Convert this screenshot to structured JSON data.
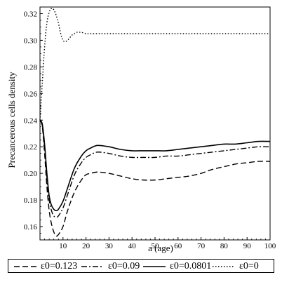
{
  "chart_data": {
    "type": "line",
    "title": "",
    "xlabel": "a (age)",
    "ylabel": "Precancerous cells density",
    "xlim": [
      0,
      100
    ],
    "ylim": [
      0.15,
      0.325
    ],
    "xticks": [
      "10",
      "20",
      "30",
      "40",
      "50",
      "60",
      "70",
      "80",
      "90",
      "100"
    ],
    "yticks": [
      "0.16",
      "0.18",
      "0.20",
      "0.22",
      "0.24",
      "0.26",
      "0.28",
      "0.30",
      "0.32"
    ],
    "grid": false,
    "legend_position": "bottom",
    "series": [
      {
        "name": "ε0=0.123",
        "dash": "dashed",
        "x": [
          0,
          1,
          2,
          3,
          4,
          5,
          6,
          7,
          8,
          10,
          12,
          15,
          18,
          20,
          22,
          25,
          30,
          35,
          40,
          45,
          50,
          55,
          60,
          65,
          70,
          75,
          80,
          85,
          90,
          95,
          100
        ],
        "y": [
          0.24,
          0.235,
          0.215,
          0.19,
          0.172,
          0.162,
          0.156,
          0.153,
          0.154,
          0.16,
          0.172,
          0.186,
          0.195,
          0.199,
          0.2,
          0.201,
          0.2,
          0.198,
          0.196,
          0.195,
          0.195,
          0.196,
          0.197,
          0.198,
          0.2,
          0.203,
          0.205,
          0.207,
          0.208,
          0.209,
          0.209
        ]
      },
      {
        "name": "ε0=0.09",
        "dash": "dashdot",
        "x": [
          0,
          1,
          2,
          3,
          4,
          5,
          6,
          7,
          8,
          10,
          12,
          15,
          18,
          20,
          22,
          25,
          30,
          35,
          40,
          45,
          50,
          55,
          60,
          65,
          70,
          75,
          80,
          85,
          90,
          95,
          100
        ],
        "y": [
          0.24,
          0.236,
          0.22,
          0.197,
          0.18,
          0.172,
          0.168,
          0.167,
          0.168,
          0.174,
          0.184,
          0.199,
          0.208,
          0.212,
          0.214,
          0.216,
          0.215,
          0.213,
          0.212,
          0.212,
          0.212,
          0.213,
          0.213,
          0.214,
          0.215,
          0.216,
          0.217,
          0.218,
          0.219,
          0.22,
          0.22
        ]
      },
      {
        "name": "ε0=0.0801",
        "dash": "solid",
        "x": [
          0,
          1,
          2,
          3,
          4,
          5,
          6,
          7,
          8,
          10,
          12,
          15,
          18,
          20,
          22,
          25,
          30,
          35,
          40,
          45,
          50,
          55,
          60,
          65,
          70,
          75,
          80,
          85,
          90,
          95,
          100
        ],
        "y": [
          0.24,
          0.237,
          0.222,
          0.2,
          0.183,
          0.176,
          0.173,
          0.172,
          0.173,
          0.179,
          0.189,
          0.204,
          0.213,
          0.217,
          0.219,
          0.221,
          0.22,
          0.218,
          0.217,
          0.217,
          0.217,
          0.217,
          0.218,
          0.219,
          0.22,
          0.221,
          0.222,
          0.222,
          0.223,
          0.224,
          0.224
        ]
      },
      {
        "name": "ε0=0",
        "dash": "dotted",
        "x": [
          0,
          1,
          2,
          3,
          4,
          5,
          6,
          7,
          8,
          9,
          10,
          11,
          12,
          13,
          14,
          15,
          16,
          17,
          18,
          20,
          22,
          25,
          30,
          40,
          50,
          60,
          70,
          80,
          90,
          100
        ],
        "y": [
          0.24,
          0.268,
          0.295,
          0.313,
          0.321,
          0.324,
          0.323,
          0.319,
          0.313,
          0.305,
          0.3,
          0.299,
          0.3,
          0.302,
          0.304,
          0.305,
          0.306,
          0.306,
          0.306,
          0.305,
          0.305,
          0.305,
          0.305,
          0.305,
          0.305,
          0.305,
          0.305,
          0.305,
          0.305,
          0.305
        ]
      }
    ]
  }
}
